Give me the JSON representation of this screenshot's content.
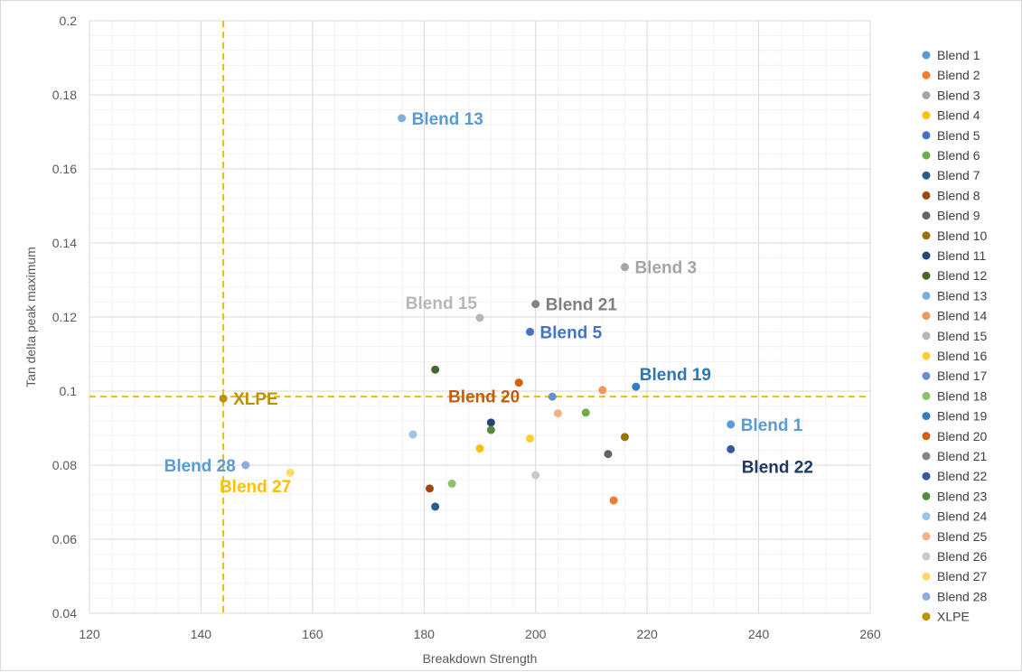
{
  "chart_data": {
    "type": "scatter",
    "title": "",
    "xlabel": "Breakdown Strength",
    "ylabel": "Tan delta peak maximum",
    "xlim": [
      120,
      260
    ],
    "ylim": [
      0.04,
      0.2
    ],
    "x_ticks": [
      "120",
      "140",
      "160",
      "180",
      "200",
      "220",
      "240",
      "260"
    ],
    "y_ticks": [
      "0.04",
      "0.06",
      "0.08",
      "0.1",
      "0.12",
      "0.14",
      "0.16",
      "0.18",
      "0.2"
    ],
    "grid": true,
    "legend_position": "right",
    "reference_lines": {
      "x": 144,
      "y": 0.0985,
      "color": "#f5b800",
      "style": "dashed"
    },
    "series": [
      {
        "name": "Blend 1",
        "x": 235,
        "y": 0.091,
        "color": "#5b9bd5"
      },
      {
        "name": "Blend 2",
        "x": 214,
        "y": 0.0705,
        "color": "#ed7d31"
      },
      {
        "name": "Blend 3",
        "x": 216,
        "y": 0.1335,
        "color": "#a5a5a5"
      },
      {
        "name": "Blend 4",
        "x": 190,
        "y": 0.0845,
        "color": "#ffc000"
      },
      {
        "name": "Blend 5",
        "x": 199,
        "y": 0.116,
        "color": "#4472c4"
      },
      {
        "name": "Blend 6",
        "x": 209,
        "y": 0.0942,
        "color": "#70ad47"
      },
      {
        "name": "Blend 7",
        "x": 182,
        "y": 0.0688,
        "color": "#255e91"
      },
      {
        "name": "Blend 8",
        "x": 181,
        "y": 0.0737,
        "color": "#9e480e"
      },
      {
        "name": "Blend 9",
        "x": 213,
        "y": 0.083,
        "color": "#636363"
      },
      {
        "name": "Blend 10",
        "x": 216,
        "y": 0.0876,
        "color": "#997300"
      },
      {
        "name": "Blend 11",
        "x": 192,
        "y": 0.0915,
        "color": "#264478"
      },
      {
        "name": "Blend 12",
        "x": 182,
        "y": 0.1058,
        "color": "#43682b"
      },
      {
        "name": "Blend 13",
        "x": 176,
        "y": 0.1737,
        "color": "#7cafdd"
      },
      {
        "name": "Blend 14",
        "x": 212,
        "y": 0.1003,
        "color": "#f1975a"
      },
      {
        "name": "Blend 15",
        "x": 190,
        "y": 0.1198,
        "color": "#b7b7b7"
      },
      {
        "name": "Blend 16",
        "x": 199,
        "y": 0.0872,
        "color": "#ffcd33"
      },
      {
        "name": "Blend 17",
        "x": 203,
        "y": 0.0985,
        "color": "#698ed0"
      },
      {
        "name": "Blend 18",
        "x": 185,
        "y": 0.075,
        "color": "#8cc168"
      },
      {
        "name": "Blend 19",
        "x": 218,
        "y": 0.1012,
        "color": "#327dc2"
      },
      {
        "name": "Blend 20",
        "x": 197,
        "y": 0.1023,
        "color": "#d26012"
      },
      {
        "name": "Blend 21",
        "x": 200,
        "y": 0.1235,
        "color": "#848484"
      },
      {
        "name": "Blend 22",
        "x": 235,
        "y": 0.0843,
        "color": "#335aa1"
      },
      {
        "name": "Blend 23",
        "x": 192,
        "y": 0.0895,
        "color": "#5a8a39"
      },
      {
        "name": "Blend 24",
        "x": 178,
        "y": 0.0883,
        "color": "#9dc3e6"
      },
      {
        "name": "Blend 25",
        "x": 204,
        "y": 0.094,
        "color": "#f4b183"
      },
      {
        "name": "Blend 26",
        "x": 200,
        "y": 0.0773,
        "color": "#c9c9c9"
      },
      {
        "name": "Blend 27",
        "x": 156,
        "y": 0.078,
        "color": "#ffd966"
      },
      {
        "name": "Blend 28",
        "x": 148,
        "y": 0.08,
        "color": "#8faadc"
      },
      {
        "name": "XLPE",
        "x": 144,
        "y": 0.098,
        "color": "#bf9000"
      }
    ],
    "annotations": [
      {
        "text": "Blend 13",
        "color": "#5b9bd5",
        "series": "Blend 13",
        "anchor": "right"
      },
      {
        "text": "Blend 3",
        "color": "#a5a5a5",
        "series": "Blend 3",
        "anchor": "right"
      },
      {
        "text": "Blend 21",
        "color": "#7f7f7f",
        "series": "Blend 21",
        "anchor": "right"
      },
      {
        "text": "Blend 15",
        "color": "#b7b7b7",
        "series": "Blend 15",
        "anchor": "above-left"
      },
      {
        "text": "Blend 5",
        "color": "#4472c4",
        "series": "Blend 5",
        "anchor": "right"
      },
      {
        "text": "Blend 19",
        "color": "#2e75b6",
        "series": "Blend 19",
        "anchor": "above-right"
      },
      {
        "text": "Blend 20",
        "color": "#c55a11",
        "series": "Blend 20",
        "anchor": "below-left"
      },
      {
        "text": "XLPE",
        "color": "#bf9000",
        "series": "XLPE",
        "anchor": "right"
      },
      {
        "text": "Blend 1",
        "color": "#5b9bd5",
        "series": "Blend 1",
        "anchor": "right"
      },
      {
        "text": "Blend 22",
        "color": "#1f3864",
        "series": "Blend 22",
        "anchor": "below-right"
      },
      {
        "text": "Blend 28",
        "color": "#5b9bd5",
        "series": "Blend 28",
        "anchor": "left"
      },
      {
        "text": "Blend 27",
        "color": "#ffc000",
        "series": "Blend 27",
        "anchor": "below-left"
      }
    ]
  }
}
